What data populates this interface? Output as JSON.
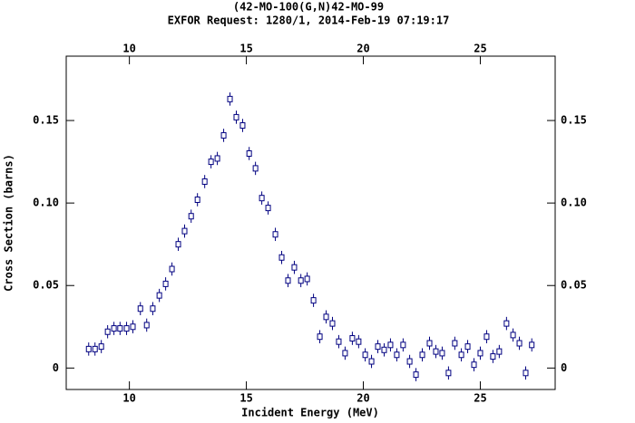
{
  "chart_data": {
    "type": "scatter",
    "title": "(42-MO-100(G,N)42-MO-99",
    "subtitle": "EXFOR Request: 1280/1, 2014-Feb-19 07:19:17",
    "x_label": "Incident Energy (MeV)",
    "y_label": "Cross Section (barns)",
    "color": "#000080",
    "xlim": [
      7.3,
      28.2
    ],
    "ylim": [
      -0.013,
      0.189
    ],
    "xticks": [
      10,
      15,
      20,
      25
    ],
    "yticks": [
      0,
      0.05,
      {
        "value": 0.1,
        "label": "0.10"
      },
      0.15
    ],
    "x": [
      8.26,
      8.53,
      8.8,
      9.07,
      9.34,
      9.6,
      9.88,
      10.15,
      10.47,
      10.74,
      11.0,
      11.28,
      11.55,
      11.82,
      12.09,
      12.36,
      12.64,
      12.91,
      13.22,
      13.49,
      13.76,
      14.03,
      14.3,
      14.57,
      14.84,
      15.12,
      15.39,
      15.66,
      15.93,
      16.24,
      16.51,
      16.78,
      17.05,
      17.33,
      17.6,
      17.87,
      18.14,
      18.41,
      18.68,
      18.95,
      19.22,
      19.53,
      19.8,
      20.08,
      20.35,
      20.62,
      20.89,
      21.16,
      21.43,
      21.7,
      21.98,
      22.25,
      22.52,
      22.83,
      23.1,
      23.37,
      23.64,
      23.91,
      24.19,
      24.46,
      24.73,
      25.0,
      25.27,
      25.54,
      25.81,
      26.12,
      26.4,
      26.67,
      26.94,
      27.2
    ],
    "values": [
      0.0115,
      0.0115,
      0.013,
      0.022,
      0.024,
      0.024,
      0.024,
      0.025,
      0.036,
      0.026,
      0.036,
      0.044,
      0.051,
      0.06,
      0.075,
      0.083,
      0.092,
      0.102,
      0.113,
      0.125,
      0.127,
      0.141,
      0.163,
      0.152,
      0.147,
      0.13,
      0.121,
      0.103,
      0.097,
      0.081,
      0.067,
      0.053,
      0.061,
      0.053,
      0.054,
      0.041,
      0.019,
      0.031,
      0.027,
      0.016,
      0.009,
      0.018,
      0.016,
      0.008,
      0.004,
      0.013,
      0.011,
      0.014,
      0.008,
      0.014,
      0.004,
      -0.004,
      0.008,
      0.015,
      0.01,
      0.009,
      -0.003,
      0.015,
      0.008,
      0.013,
      0.002,
      0.009,
      0.019,
      0.007,
      0.01,
      0.027,
      0.02,
      0.015,
      -0.003,
      0.014
    ],
    "errors": [
      0.004,
      0.004,
      0.004,
      0.004,
      0.004,
      0.004,
      0.004,
      0.004,
      0.004,
      0.004,
      0.004,
      0.004,
      0.004,
      0.004,
      0.004,
      0.004,
      0.004,
      0.004,
      0.004,
      0.004,
      0.004,
      0.004,
      0.004,
      0.004,
      0.004,
      0.004,
      0.004,
      0.004,
      0.004,
      0.004,
      0.004,
      0.004,
      0.004,
      0.004,
      0.004,
      0.004,
      0.004,
      0.004,
      0.004,
      0.004,
      0.004,
      0.004,
      0.004,
      0.004,
      0.004,
      0.004,
      0.004,
      0.004,
      0.004,
      0.004,
      0.004,
      0.004,
      0.004,
      0.004,
      0.004,
      0.004,
      0.004,
      0.004,
      0.004,
      0.004,
      0.004,
      0.004,
      0.004,
      0.004,
      0.004,
      0.004,
      0.004,
      0.004,
      0.004,
      0.004
    ]
  }
}
